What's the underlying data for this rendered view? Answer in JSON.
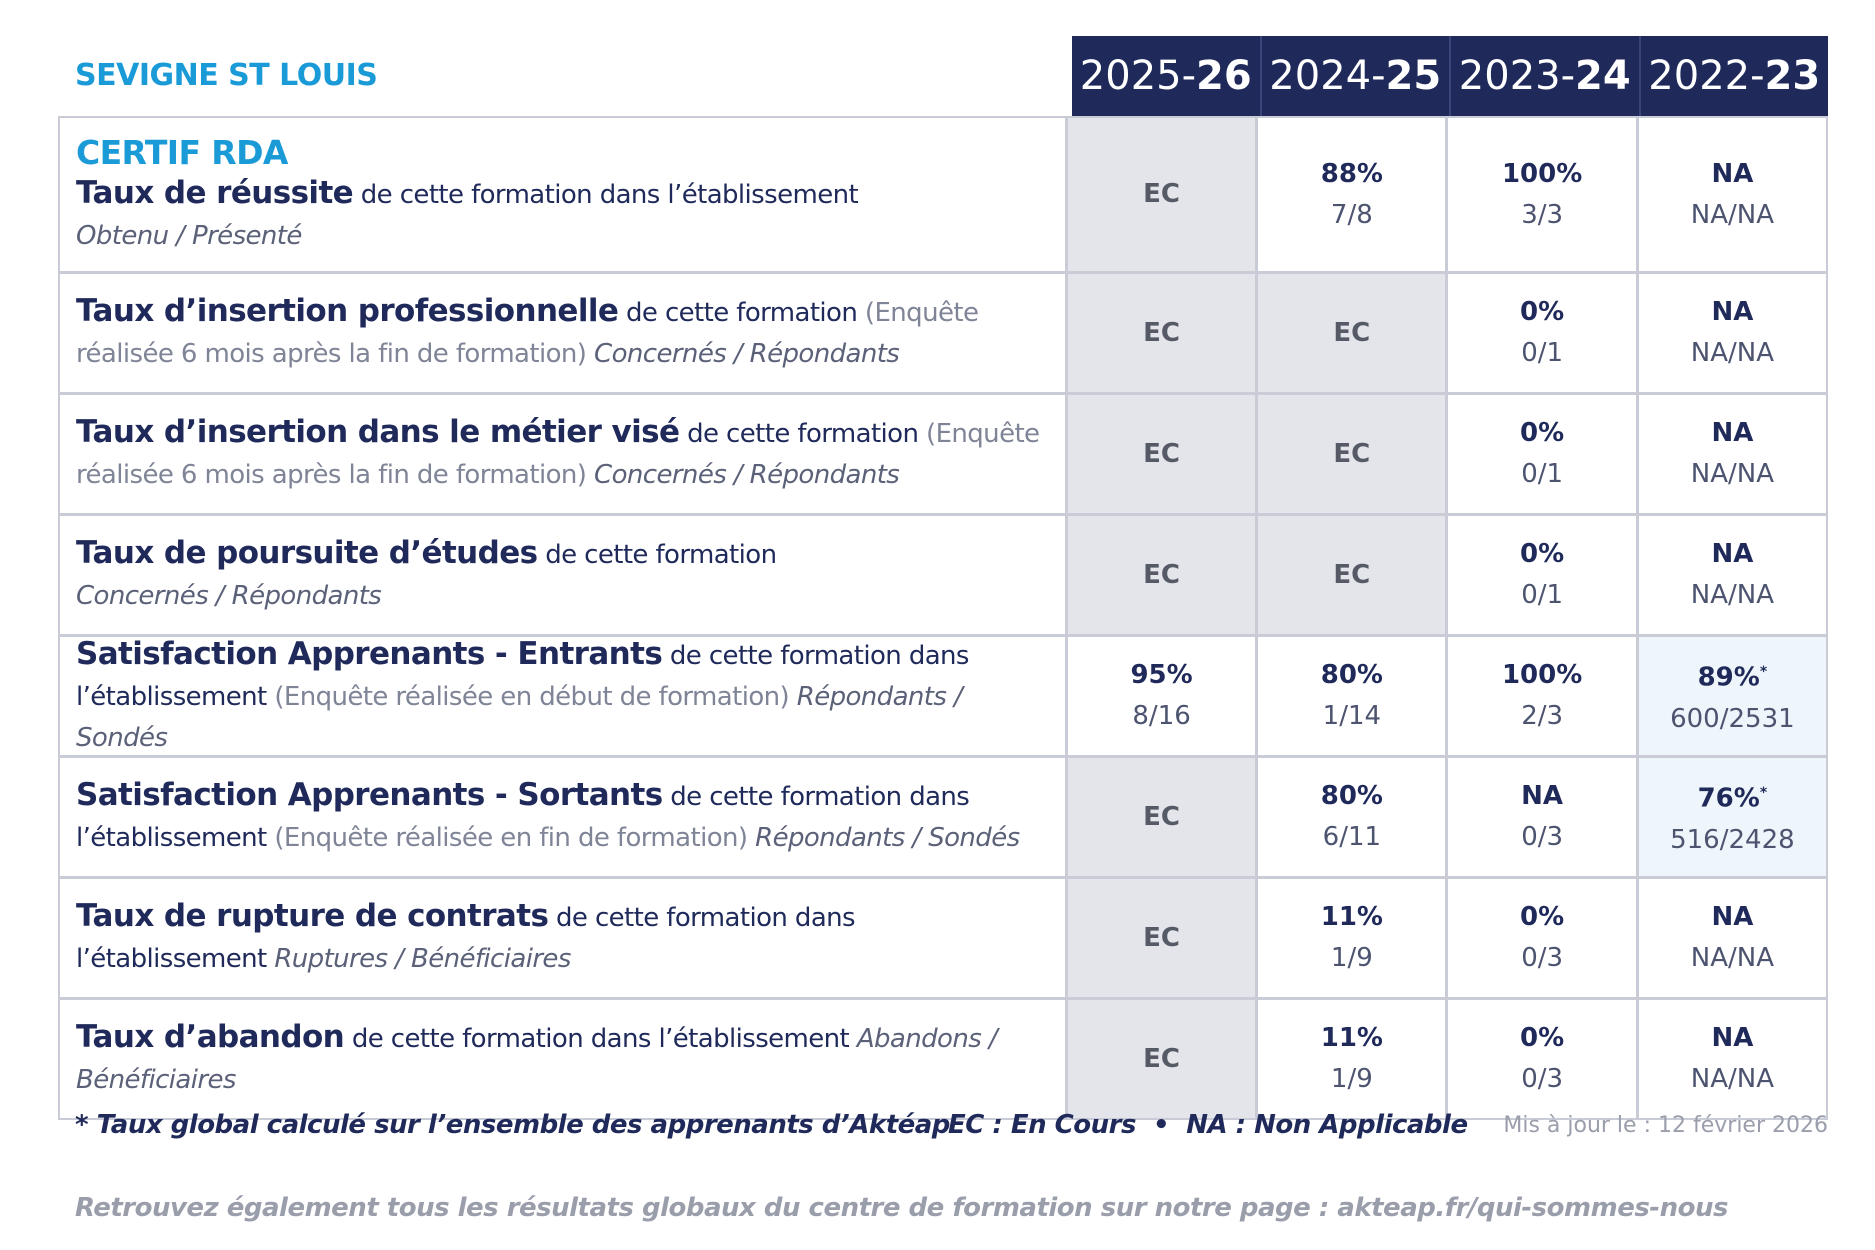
{
  "header": {
    "school": "SEVIGNE ST LOUIS",
    "years": [
      {
        "prefix": "2025-",
        "suffix": "26"
      },
      {
        "prefix": "2024-",
        "suffix": "25"
      },
      {
        "prefix": "2023-",
        "suffix": "24"
      },
      {
        "prefix": "2022-",
        "suffix": "23"
      }
    ]
  },
  "table": {
    "rows": [
      {
        "title": "CERTIF RDA",
        "bold": "Taux de réussite",
        "normal": "de cette formation dans l’établissement",
        "italic": "Obtenu / Présenté",
        "cells": [
          {
            "main": "EC"
          },
          {
            "main": "88%",
            "sub": "7/8"
          },
          {
            "main": "100%",
            "sub": "3/3"
          },
          {
            "main": "NA",
            "sub": "NA/NA"
          }
        ]
      },
      {
        "bold": "Taux d’insertion professionnelle",
        "normal": "de cette formation",
        "note": "(Enquête réalisée 6 mois après la fin de formation)",
        "italic": "Concernés / Répondants",
        "cells": [
          {
            "main": "EC"
          },
          {
            "main": "EC"
          },
          {
            "main": "0%",
            "sub": "0/1"
          },
          {
            "main": "NA",
            "sub": "NA/NA"
          }
        ]
      },
      {
        "bold": "Taux d’insertion dans le métier visé",
        "normal": "de cette formation",
        "note": "(Enquête réalisée 6 mois après la fin de formation)",
        "italic": "Concernés / Répondants",
        "cells": [
          {
            "main": "EC"
          },
          {
            "main": "EC"
          },
          {
            "main": "0%",
            "sub": "0/1"
          },
          {
            "main": "NA",
            "sub": "NA/NA"
          }
        ]
      },
      {
        "bold": "Taux de poursuite d’études",
        "normal": "de cette formation",
        "italic": "Concernés / Répondants",
        "cells": [
          {
            "main": "EC"
          },
          {
            "main": "EC"
          },
          {
            "main": "0%",
            "sub": "0/1"
          },
          {
            "main": "NA",
            "sub": "NA/NA"
          }
        ]
      },
      {
        "bold": "Satisfaction Apprenants - Entrants",
        "normal": "de cette formation dans l’établissement",
        "note": "(Enquête réalisée en début de formation)",
        "italic": "Répondants / Sondés",
        "cells": [
          {
            "main": "95%",
            "sub": "8/16"
          },
          {
            "main": "80%",
            "sub": "1/14"
          },
          {
            "main": "100%",
            "sub": "2/3"
          },
          {
            "main": "89%",
            "star": "*",
            "sub": "600/2531"
          }
        ]
      },
      {
        "bold": "Satisfaction Apprenants - Sortants",
        "normal": "de cette formation dans l’établissement",
        "note": "(Enquête réalisée en fin de formation)",
        "italic": "Répondants / Sondés",
        "cells": [
          {
            "main": "EC"
          },
          {
            "main": "80%",
            "sub": "6/11"
          },
          {
            "main": "NA",
            "sub": "0/3"
          },
          {
            "main": "76%",
            "star": "*",
            "sub": "516/2428"
          }
        ]
      },
      {
        "bold": "Taux de rupture de contrats",
        "normal": "de cette formation dans l’établissement",
        "italic": "Ruptures / Bénéficiaires",
        "cells": [
          {
            "main": "EC"
          },
          {
            "main": "11%",
            "sub": "1/9"
          },
          {
            "main": "0%",
            "sub": "0/3"
          },
          {
            "main": "NA",
            "sub": "NA/NA"
          }
        ]
      },
      {
        "bold": "Taux d’abandon",
        "normal": "de cette formation dans l’établissement",
        "italic": "Abandons / Bénéficiaires",
        "cells": [
          {
            "main": "EC"
          },
          {
            "main": "11%",
            "sub": "1/9"
          },
          {
            "main": "0%",
            "sub": "0/3"
          },
          {
            "main": "NA",
            "sub": "NA/NA"
          }
        ]
      }
    ]
  },
  "footer": {
    "star_note": "* Taux global calculé sur l’ensemble des apprenants d’Aktéap",
    "legend": "EC : En Cours  •  NA : Non Applicable",
    "updated": "Mis à jour le : 12 février 2026",
    "link": "Retrouvez également tous les résultats globaux du centre de formation sur notre page : akteap.fr/qui-sommes-nous"
  }
}
